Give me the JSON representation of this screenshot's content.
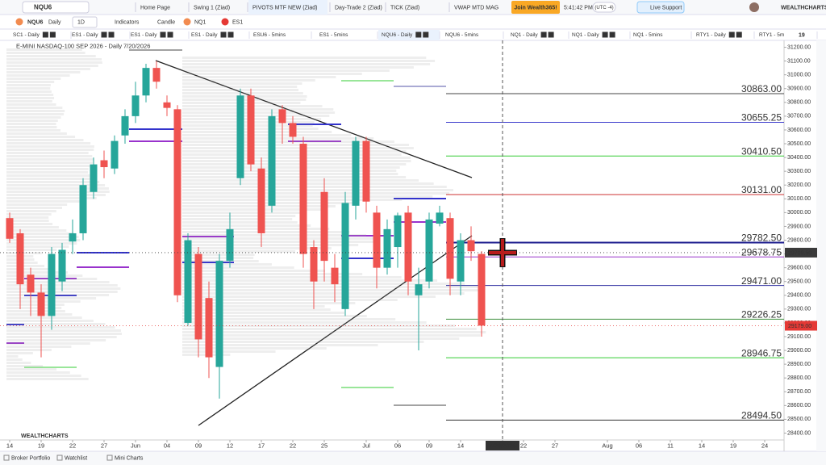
{
  "toolbar": {
    "symbol": "NQU6",
    "tabs": [
      "Home Page",
      "Swing 1 (Ziad)",
      "PIVOTS MTF NEW (Ziad)",
      "Day-Trade 2 (Ziad)",
      "TICK (Ziad)",
      "VWAP MTD MAG"
    ],
    "join": "Join Wealth365!",
    "time": "5:41:42 PM",
    "timezone": "(UTC -4)",
    "support": "Live Support",
    "brand": "WEALTHCHARTS"
  },
  "chart_toolbar": {
    "symbol": "NQU6",
    "interval": "Daily",
    "timeframe": "1D",
    "indicators": "Indicators",
    "style": "Candle",
    "compare": [
      "NQ1",
      "ES1"
    ]
  },
  "chart_tabs": [
    "SC1 - Daily",
    "ES1 - Daily",
    "ES1 - Daily",
    "ES1 - Daily",
    "ESU6 - 5mins",
    "ES1 - 5mins",
    "NQU6 - Daily",
    "NQU6 - 5mins",
    "NQ1 - Daily",
    "NQ1 - Daily",
    "NQ1 - 5mins",
    "RTY1 - Daily",
    "RTY1 - 5m"
  ],
  "chart_tabs_more": 19,
  "chart_data": {
    "type": "candlestick",
    "title": "E-MINI NASDAQ-100 SEP 2026 - Daily",
    "date": "7/20/2026",
    "watermark": "WEALTHCHARTS",
    "x": [
      0,
      1,
      2,
      3,
      4,
      5,
      6,
      7,
      8,
      9,
      10,
      11,
      12,
      13,
      14,
      15,
      16,
      17,
      18,
      19,
      20,
      21,
      22,
      23,
      24,
      25,
      26,
      27,
      28,
      29,
      30,
      31,
      32,
      33,
      34,
      35,
      36,
      37,
      38,
      39,
      40,
      41,
      42,
      43,
      44,
      45
    ],
    "open": [
      29960,
      29850,
      29550,
      29420,
      29250,
      29500,
      29790,
      29850,
      30150,
      30380,
      30320,
      30560,
      30700,
      30850,
      31050,
      30800,
      30750,
      29200,
      29700,
      29380,
      28880,
      29650,
      30250,
      30850,
      30320,
      30050,
      30750,
      30650,
      30500,
      29750,
      30150,
      29600,
      29300,
      30050,
      30520,
      30000,
      29600,
      29750,
      30000,
      29400,
      29500,
      29920,
      29960,
      29500,
      29800,
      29700
    ],
    "high": [
      30000,
      29880,
      29600,
      29480,
      29750,
      29780,
      29950,
      30250,
      30400,
      30450,
      30560,
      30750,
      30950,
      31080,
      31100,
      30850,
      30780,
      29850,
      29750,
      29500,
      29700,
      30000,
      30900,
      30900,
      30400,
      30750,
      30780,
      30700,
      30550,
      29800,
      30250,
      29700,
      30150,
      30550,
      30550,
      30050,
      29950,
      30000,
      30050,
      29600,
      30000,
      30050,
      30000,
      29850,
      29900,
      29720
    ],
    "low": [
      29780,
      29300,
      29250,
      28950,
      29150,
      29430,
      29700,
      29800,
      30100,
      30250,
      30280,
      30500,
      30650,
      30800,
      30900,
      30700,
      29350,
      29180,
      28950,
      28800,
      28650,
      29600,
      30200,
      30300,
      29750,
      30000,
      30500,
      30500,
      29600,
      29300,
      29500,
      29350,
      29250,
      29950,
      30000,
      29450,
      29550,
      29600,
      29400,
      29000,
      29450,
      29900,
      29400,
      29400,
      29650,
      29100
    ],
    "close": [
      29810,
      29480,
      29420,
      29250,
      29700,
      29730,
      29850,
      30200,
      30350,
      30330,
      30520,
      30700,
      30850,
      31050,
      30950,
      30760,
      29400,
      29800,
      29080,
      28950,
      29650,
      29880,
      30850,
      30350,
      29850,
      30700,
      30650,
      30550,
      29700,
      29500,
      29650,
      29480,
      30070,
      30520,
      30080,
      29600,
      29880,
      29980,
      29500,
      29480,
      29950,
      30000,
      29520,
      29800,
      29720,
      29180
    ],
    "up_color": "#26a69a",
    "down_color": "#ef5350",
    "xlim": [
      -0.5,
      73.5
    ],
    "ylim": [
      28350,
      31250
    ],
    "xticks": [
      {
        "value": 0,
        "label": "14"
      },
      {
        "value": 3,
        "label": "19"
      },
      {
        "value": 6,
        "label": "22"
      },
      {
        "value": 9,
        "label": "27"
      },
      {
        "value": 12,
        "label": "Jun"
      },
      {
        "value": 15,
        "label": "04"
      },
      {
        "value": 18,
        "label": "09"
      },
      {
        "value": 21,
        "label": "12"
      },
      {
        "value": 24,
        "label": "17"
      },
      {
        "value": 27,
        "label": "22"
      },
      {
        "value": 30,
        "label": "25"
      },
      {
        "value": 34,
        "label": "Jul"
      },
      {
        "value": 37,
        "label": "06"
      },
      {
        "value": 40,
        "label": "09"
      },
      {
        "value": 43,
        "label": "14"
      },
      {
        "value": 47,
        "label": "7/20/2026"
      },
      {
        "value": 49,
        "label": "22"
      },
      {
        "value": 52,
        "label": "27"
      },
      {
        "value": 57,
        "label": "Aug"
      },
      {
        "value": 60,
        "label": "06"
      },
      {
        "value": 63,
        "label": "11"
      },
      {
        "value": 66,
        "label": "14"
      },
      {
        "value": 69,
        "label": "19"
      },
      {
        "value": 72,
        "label": "24"
      }
    ],
    "yticks": [
      {
        "value": 28400,
        "label": "28400.00"
      },
      {
        "value": 28500,
        "label": "28500.00"
      },
      {
        "value": 28600,
        "label": "28600.00"
      },
      {
        "value": 28700,
        "label": "28700.00"
      },
      {
        "value": 28800,
        "label": "28800.00"
      },
      {
        "value": 28900,
        "label": "28900.00"
      },
      {
        "value": 29000,
        "label": "29000.00"
      },
      {
        "value": 29100,
        "label": "29100.00"
      },
      {
        "value": 29200,
        "label": "29200.00"
      },
      {
        "value": 29300,
        "label": "29300.00"
      },
      {
        "value": 29400,
        "label": "29400.00"
      },
      {
        "value": 29500,
        "label": "29500.00"
      },
      {
        "value": 29600,
        "label": "29600.00"
      },
      {
        "value": 29700,
        "label": "29700.00"
      },
      {
        "value": 29800,
        "label": "29800.00"
      },
      {
        "value": 29900,
        "label": "29900.00"
      },
      {
        "value": 30000,
        "label": "30000.00"
      },
      {
        "value": 30100,
        "label": "30100.00"
      },
      {
        "value": 30200,
        "label": "30200.00"
      },
      {
        "value": 30300,
        "label": "30300.00"
      },
      {
        "value": 30400,
        "label": "30400.00"
      },
      {
        "value": 30500,
        "label": "30500.00"
      },
      {
        "value": 30600,
        "label": "30600.00"
      },
      {
        "value": 30700,
        "label": "30700.00"
      },
      {
        "value": 30800,
        "label": "30800.00"
      },
      {
        "value": 30900,
        "label": "30900.00"
      },
      {
        "value": 31000,
        "label": "31000.00"
      },
      {
        "value": 31100,
        "label": "31100.00"
      },
      {
        "value": 31200,
        "label": "31200.00"
      }
    ],
    "levels": [
      {
        "value": 30863,
        "label": "30863.00",
        "color": "#444444"
      },
      {
        "value": 30655.25,
        "label": "30655.25",
        "color": "#3a3acc"
      },
      {
        "value": 30410.5,
        "label": "30410.50",
        "color": "#33cc33"
      },
      {
        "value": 30131,
        "label": "30131.00",
        "color": "#cc3333"
      },
      {
        "value": 29782.5,
        "label": "29782.50",
        "color": "#1a1a8c"
      },
      {
        "value": 29678.75,
        "label": "29678.75",
        "color": "#9933cc"
      },
      {
        "value": 29471,
        "label": "29471.00",
        "color": "#2e2ea0"
      },
      {
        "value": 29226.25,
        "label": "29226.25",
        "color": "#3d8f3d"
      },
      {
        "value": 28946.75,
        "label": "28946.75",
        "color": "#33cc33"
      },
      {
        "value": 28494.5,
        "label": "28494.50",
        "color": "#333333"
      }
    ],
    "price_tags": [
      {
        "value": 29709.5,
        "label": "29709.50",
        "color": "#3a3a3a"
      },
      {
        "value": 29179,
        "label": "29179.00",
        "color": "#e53935"
      }
    ]
  },
  "bottom_bar": [
    "Broker Portfolio",
    "Watchlist",
    "Mini Charts"
  ]
}
